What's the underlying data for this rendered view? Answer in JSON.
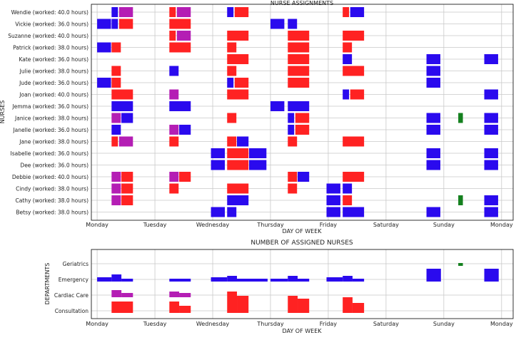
{
  "chart_data": [
    {
      "type": "gantt",
      "title": "NURSE ASSIGNMENTS",
      "xlabel": "DAY OF WEEK",
      "ylabel": "NURSES",
      "xlim": [
        -0.1,
        7.2
      ],
      "days": [
        "Monday",
        "Tuesday",
        "Wednesday",
        "Thursday",
        "Friday",
        "Saturday",
        "Sunday",
        "Monday"
      ],
      "colors": {
        "Consultation": "#ff2222",
        "Cardiac Care": "#b41eb4",
        "Emergency": "#2a0aee",
        "Geriatrics": "#14801e"
      },
      "nurses": [
        {
          "label": "Wendie (worked: 40.0 hours)",
          "shifts": [
            [
              0.25,
              0.11,
              "Emergency"
            ],
            [
              0.38,
              0.24,
              "Cardiac Care"
            ],
            [
              1.25,
              0.11,
              "Consultation"
            ],
            [
              1.38,
              0.24,
              "Cardiac Care"
            ],
            [
              2.25,
              0.11,
              "Emergency"
            ],
            [
              2.38,
              0.24,
              "Consultation"
            ],
            [
              4.25,
              0.11,
              "Consultation"
            ],
            [
              4.38,
              0.24,
              "Emergency"
            ]
          ]
        },
        {
          "label": "Vickie (worked: 36.0 hours)",
          "shifts": [
            [
              0.0,
              0.24,
              "Emergency"
            ],
            [
              0.25,
              0.11,
              "Emergency"
            ],
            [
              0.38,
              0.24,
              "Consultation"
            ],
            [
              1.25,
              0.37,
              "Consultation"
            ],
            [
              3.0,
              0.24,
              "Emergency"
            ],
            [
              3.3,
              0.16,
              "Emergency"
            ]
          ]
        },
        {
          "label": "Suzanne (worked: 40.0 hours)",
          "shifts": [
            [
              1.25,
              0.11,
              "Consultation"
            ],
            [
              1.38,
              0.24,
              "Cardiac Care"
            ],
            [
              2.25,
              0.37,
              "Consultation"
            ],
            [
              3.3,
              0.37,
              "Consultation"
            ],
            [
              4.25,
              0.37,
              "Consultation"
            ]
          ]
        },
        {
          "label": "Patrick (worked: 38.0 hours)",
          "shifts": [
            [
              0.0,
              0.24,
              "Emergency"
            ],
            [
              0.25,
              0.16,
              "Consultation"
            ],
            [
              1.25,
              0.37,
              "Consultation"
            ],
            [
              2.25,
              0.16,
              "Consultation"
            ],
            [
              3.3,
              0.37,
              "Consultation"
            ],
            [
              4.25,
              0.16,
              "Consultation"
            ]
          ]
        },
        {
          "label": "Kate (worked: 36.0 hours)",
          "shifts": [
            [
              2.25,
              0.37,
              "Consultation"
            ],
            [
              3.3,
              0.37,
              "Consultation"
            ],
            [
              4.25,
              0.16,
              "Emergency"
            ],
            [
              5.7,
              0.24,
              "Emergency"
            ],
            [
              6.7,
              0.24,
              "Emergency"
            ]
          ]
        },
        {
          "label": "Julie (worked: 38.0 hours)",
          "shifts": [
            [
              0.25,
              0.16,
              "Consultation"
            ],
            [
              1.25,
              0.16,
              "Emergency"
            ],
            [
              2.25,
              0.16,
              "Consultation"
            ],
            [
              3.3,
              0.37,
              "Consultation"
            ],
            [
              4.25,
              0.37,
              "Consultation"
            ],
            [
              5.7,
              0.24,
              "Emergency"
            ]
          ]
        },
        {
          "label": "Jude (worked: 36.0 hours)",
          "shifts": [
            [
              0.0,
              0.24,
              "Emergency"
            ],
            [
              0.25,
              0.16,
              "Consultation"
            ],
            [
              2.25,
              0.11,
              "Emergency"
            ],
            [
              2.38,
              0.24,
              "Consultation"
            ],
            [
              3.3,
              0.37,
              "Consultation"
            ],
            [
              5.7,
              0.24,
              "Emergency"
            ]
          ]
        },
        {
          "label": "Joan (worked: 40.0 hours)",
          "shifts": [
            [
              0.25,
              0.37,
              "Consultation"
            ],
            [
              1.25,
              0.16,
              "Cardiac Care"
            ],
            [
              2.25,
              0.37,
              "Consultation"
            ],
            [
              4.25,
              0.11,
              "Emergency"
            ],
            [
              4.38,
              0.24,
              "Consultation"
            ],
            [
              6.7,
              0.24,
              "Emergency"
            ]
          ]
        },
        {
          "label": "Jemma (worked: 36.0 hours)",
          "shifts": [
            [
              0.25,
              0.37,
              "Emergency"
            ],
            [
              1.25,
              0.37,
              "Emergency"
            ],
            [
              3.0,
              0.24,
              "Emergency"
            ],
            [
              3.3,
              0.37,
              "Emergency"
            ]
          ]
        },
        {
          "label": "Janice (worked: 38.0 hours)",
          "shifts": [
            [
              0.25,
              0.16,
              "Cardiac Care"
            ],
            [
              0.42,
              0.2,
              "Emergency"
            ],
            [
              2.25,
              0.16,
              "Consultation"
            ],
            [
              3.3,
              0.11,
              "Emergency"
            ],
            [
              3.43,
              0.24,
              "Consultation"
            ],
            [
              5.7,
              0.24,
              "Emergency"
            ],
            [
              6.25,
              0.08,
              "Geriatrics"
            ],
            [
              6.7,
              0.24,
              "Emergency"
            ]
          ]
        },
        {
          "label": "Janelle (worked: 36.0 hours)",
          "shifts": [
            [
              0.25,
              0.16,
              "Emergency"
            ],
            [
              1.25,
              0.16,
              "Cardiac Care"
            ],
            [
              1.42,
              0.2,
              "Emergency"
            ],
            [
              3.3,
              0.11,
              "Emergency"
            ],
            [
              3.43,
              0.24,
              "Consultation"
            ],
            [
              5.7,
              0.24,
              "Emergency"
            ],
            [
              6.7,
              0.24,
              "Emergency"
            ]
          ]
        },
        {
          "label": "Jane (worked: 38.0 hours)",
          "shifts": [
            [
              0.25,
              0.11,
              "Consultation"
            ],
            [
              0.38,
              0.24,
              "Cardiac Care"
            ],
            [
              1.25,
              0.16,
              "Consultation"
            ],
            [
              2.25,
              0.16,
              "Consultation"
            ],
            [
              2.42,
              0.2,
              "Emergency"
            ],
            [
              3.3,
              0.16,
              "Consultation"
            ],
            [
              4.25,
              0.37,
              "Consultation"
            ]
          ]
        },
        {
          "label": "Isabelle (worked: 36.0 hours)",
          "shifts": [
            [
              1.97,
              0.24,
              "Emergency"
            ],
            [
              2.25,
              0.37,
              "Consultation"
            ],
            [
              2.63,
              0.3,
              "Emergency"
            ],
            [
              5.7,
              0.24,
              "Emergency"
            ],
            [
              6.7,
              0.24,
              "Emergency"
            ]
          ]
        },
        {
          "label": "Dee (worked: 36.0 hours)",
          "shifts": [
            [
              1.97,
              0.24,
              "Emergency"
            ],
            [
              2.25,
              0.37,
              "Consultation"
            ],
            [
              2.63,
              0.3,
              "Emergency"
            ],
            [
              5.7,
              0.24,
              "Emergency"
            ],
            [
              6.7,
              0.24,
              "Emergency"
            ]
          ]
        },
        {
          "label": "Debbie (worked: 40.0 hours)",
          "shifts": [
            [
              0.25,
              0.16,
              "Cardiac Care"
            ],
            [
              0.42,
              0.2,
              "Consultation"
            ],
            [
              1.25,
              0.16,
              "Cardiac Care"
            ],
            [
              1.42,
              0.2,
              "Consultation"
            ],
            [
              3.3,
              0.16,
              "Consultation"
            ],
            [
              3.47,
              0.2,
              "Emergency"
            ],
            [
              4.25,
              0.37,
              "Consultation"
            ]
          ]
        },
        {
          "label": "Cindy (worked: 38.0 hours)",
          "shifts": [
            [
              0.25,
              0.16,
              "Cardiac Care"
            ],
            [
              0.42,
              0.2,
              "Consultation"
            ],
            [
              1.25,
              0.16,
              "Consultation"
            ],
            [
              2.25,
              0.37,
              "Consultation"
            ],
            [
              3.3,
              0.16,
              "Consultation"
            ],
            [
              3.97,
              0.24,
              "Emergency"
            ],
            [
              4.25,
              0.16,
              "Emergency"
            ]
          ]
        },
        {
          "label": "Cathy (worked: 38.0 hours)",
          "shifts": [
            [
              0.25,
              0.16,
              "Cardiac Care"
            ],
            [
              0.42,
              0.2,
              "Consultation"
            ],
            [
              2.25,
              0.37,
              "Emergency"
            ],
            [
              3.97,
              0.24,
              "Emergency"
            ],
            [
              4.25,
              0.16,
              "Consultation"
            ],
            [
              6.25,
              0.08,
              "Geriatrics"
            ],
            [
              6.7,
              0.24,
              "Emergency"
            ]
          ]
        },
        {
          "label": "Betsy (worked: 38.0 hours)",
          "shifts": [
            [
              1.97,
              0.24,
              "Emergency"
            ],
            [
              2.25,
              0.16,
              "Emergency"
            ],
            [
              3.97,
              0.24,
              "Emergency"
            ],
            [
              4.25,
              0.37,
              "Emergency"
            ],
            [
              5.7,
              0.24,
              "Emergency"
            ],
            [
              6.7,
              0.24,
              "Emergency"
            ]
          ]
        }
      ]
    },
    {
      "type": "step-bars",
      "title": "NUMBER OF ASSIGNED NURSES",
      "xlabel": "DAY OF WEEK",
      "ylabel": "DEPARTMENTS",
      "xlim": [
        -0.1,
        7.2
      ],
      "days": [
        "Monday",
        "Tuesday",
        "Wednesday",
        "Thursday",
        "Friday",
        "Saturday",
        "Sunday",
        "Monday"
      ],
      "departments": [
        "Geriatrics",
        "Emergency",
        "Cardiac Care",
        "Consultation"
      ],
      "segments": [
        {
          "department": "Emergency",
          "start": 0.0,
          "end": 0.25,
          "count": 3
        },
        {
          "department": "Emergency",
          "start": 0.25,
          "end": 0.42,
          "count": 5
        },
        {
          "department": "Emergency",
          "start": 0.42,
          "end": 0.62,
          "count": 2
        },
        {
          "department": "Emergency",
          "start": 1.25,
          "end": 1.62,
          "count": 2
        },
        {
          "department": "Emergency",
          "start": 1.97,
          "end": 2.25,
          "count": 3
        },
        {
          "department": "Emergency",
          "start": 2.25,
          "end": 2.42,
          "count": 4
        },
        {
          "department": "Emergency",
          "start": 2.42,
          "end": 2.95,
          "count": 2
        },
        {
          "department": "Emergency",
          "start": 3.0,
          "end": 3.3,
          "count": 2
        },
        {
          "department": "Emergency",
          "start": 3.3,
          "end": 3.47,
          "count": 4
        },
        {
          "department": "Emergency",
          "start": 3.47,
          "end": 3.67,
          "count": 2
        },
        {
          "department": "Emergency",
          "start": 3.97,
          "end": 4.25,
          "count": 3
        },
        {
          "department": "Emergency",
          "start": 4.25,
          "end": 4.42,
          "count": 4
        },
        {
          "department": "Emergency",
          "start": 4.42,
          "end": 4.62,
          "count": 2
        },
        {
          "department": "Emergency",
          "start": 5.7,
          "end": 5.95,
          "count": 9
        },
        {
          "department": "Emergency",
          "start": 6.7,
          "end": 6.95,
          "count": 9
        },
        {
          "department": "Geriatrics",
          "start": 6.25,
          "end": 6.33,
          "count": 2
        },
        {
          "department": "Cardiac Care",
          "start": 0.25,
          "end": 0.42,
          "count": 5
        },
        {
          "department": "Cardiac Care",
          "start": 0.42,
          "end": 0.62,
          "count": 3
        },
        {
          "department": "Cardiac Care",
          "start": 1.25,
          "end": 1.42,
          "count": 4
        },
        {
          "department": "Cardiac Care",
          "start": 1.42,
          "end": 1.62,
          "count": 3
        },
        {
          "department": "Consultation",
          "start": 0.25,
          "end": 0.62,
          "count": 8
        },
        {
          "department": "Consultation",
          "start": 1.25,
          "end": 1.42,
          "count": 8
        },
        {
          "department": "Consultation",
          "start": 1.42,
          "end": 1.62,
          "count": 5
        },
        {
          "department": "Consultation",
          "start": 2.25,
          "end": 2.42,
          "count": 15
        },
        {
          "department": "Consultation",
          "start": 2.42,
          "end": 2.62,
          "count": 12
        },
        {
          "department": "Consultation",
          "start": 3.3,
          "end": 3.47,
          "count": 12
        },
        {
          "department": "Consultation",
          "start": 3.47,
          "end": 3.67,
          "count": 10
        },
        {
          "department": "Consultation",
          "start": 4.25,
          "end": 4.42,
          "count": 11
        },
        {
          "department": "Consultation",
          "start": 4.42,
          "end": 4.62,
          "count": 7
        }
      ]
    }
  ]
}
